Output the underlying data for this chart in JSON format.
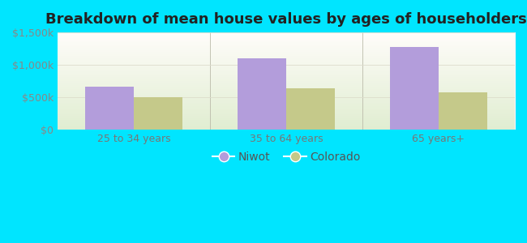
{
  "title": "Breakdown of mean house values by ages of householders",
  "categories": [
    "25 to 34 years",
    "35 to 64 years",
    "65 years+"
  ],
  "niwot_values": [
    670000,
    1100000,
    1280000
  ],
  "colorado_values": [
    500000,
    640000,
    575000
  ],
  "niwot_color": "#b39ddb",
  "colorado_color": "#c5c98a",
  "background_outer": "#00e5ff",
  "ylim": [
    0,
    1500000
  ],
  "yticks": [
    0,
    500000,
    1000000,
    1500000
  ],
  "ytick_labels": [
    "$0",
    "$500k",
    "$1,000k",
    "$1,500k"
  ],
  "bar_width": 0.32,
  "legend_labels": [
    "Niwot",
    "Colorado"
  ],
  "title_fontsize": 13,
  "tick_fontsize": 9,
  "legend_fontsize": 10
}
